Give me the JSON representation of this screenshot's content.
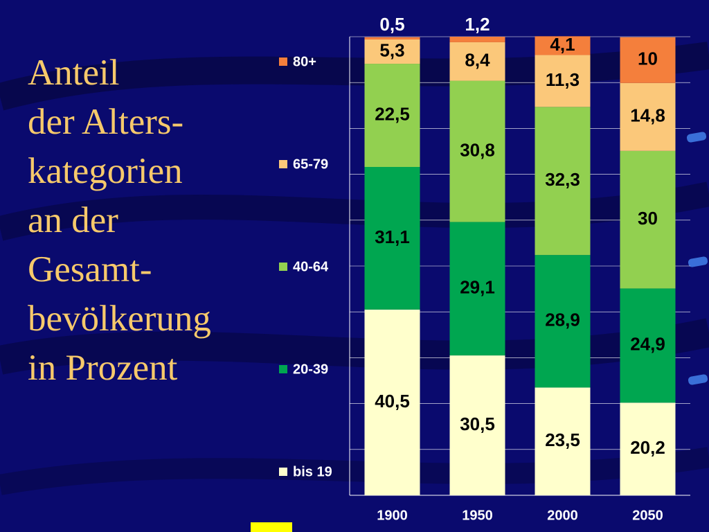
{
  "title_lines": [
    "Anteil",
    "der Alters-",
    "kategorien",
    "an der",
    "Gesamt-",
    "bevölkerung",
    "in Prozent"
  ],
  "chart_data": {
    "type": "bar",
    "stacked": true,
    "categories": [
      "1900",
      "1950",
      "2000",
      "2050"
    ],
    "series": [
      {
        "name": "bis 19",
        "values": [
          40.5,
          30.5,
          23.5,
          20.2
        ],
        "labels": [
          "40,5",
          "30,5",
          "23,5",
          "20,2"
        ],
        "color": "#ffffcc"
      },
      {
        "name": "20-39",
        "values": [
          31.1,
          29.1,
          28.9,
          24.9
        ],
        "labels": [
          "31,1",
          "29,1",
          "28,9",
          "24,9"
        ],
        "color": "#00a650"
      },
      {
        "name": "40-64",
        "values": [
          22.5,
          30.8,
          32.3,
          30.0
        ],
        "labels": [
          "22,5",
          "30,8",
          "32,3",
          "30"
        ],
        "color": "#92d050"
      },
      {
        "name": "65-79",
        "values": [
          5.3,
          8.4,
          11.3,
          14.8
        ],
        "labels": [
          "5,3",
          "8,4",
          "11,3",
          "14,8"
        ],
        "color": "#fbc87a"
      },
      {
        "name": "80+",
        "values": [
          0.5,
          1.2,
          4.1,
          10.0
        ],
        "labels": [
          "0,5",
          "1,2",
          "4,1",
          "10"
        ],
        "color": "#f47f3c"
      }
    ],
    "ylim": [
      0,
      100
    ],
    "grid": true,
    "legend_position": "left",
    "colors": {
      "background": "#0a0a6e",
      "title": "#f6c96b",
      "text": "#ffffff",
      "label": "#000000"
    }
  }
}
